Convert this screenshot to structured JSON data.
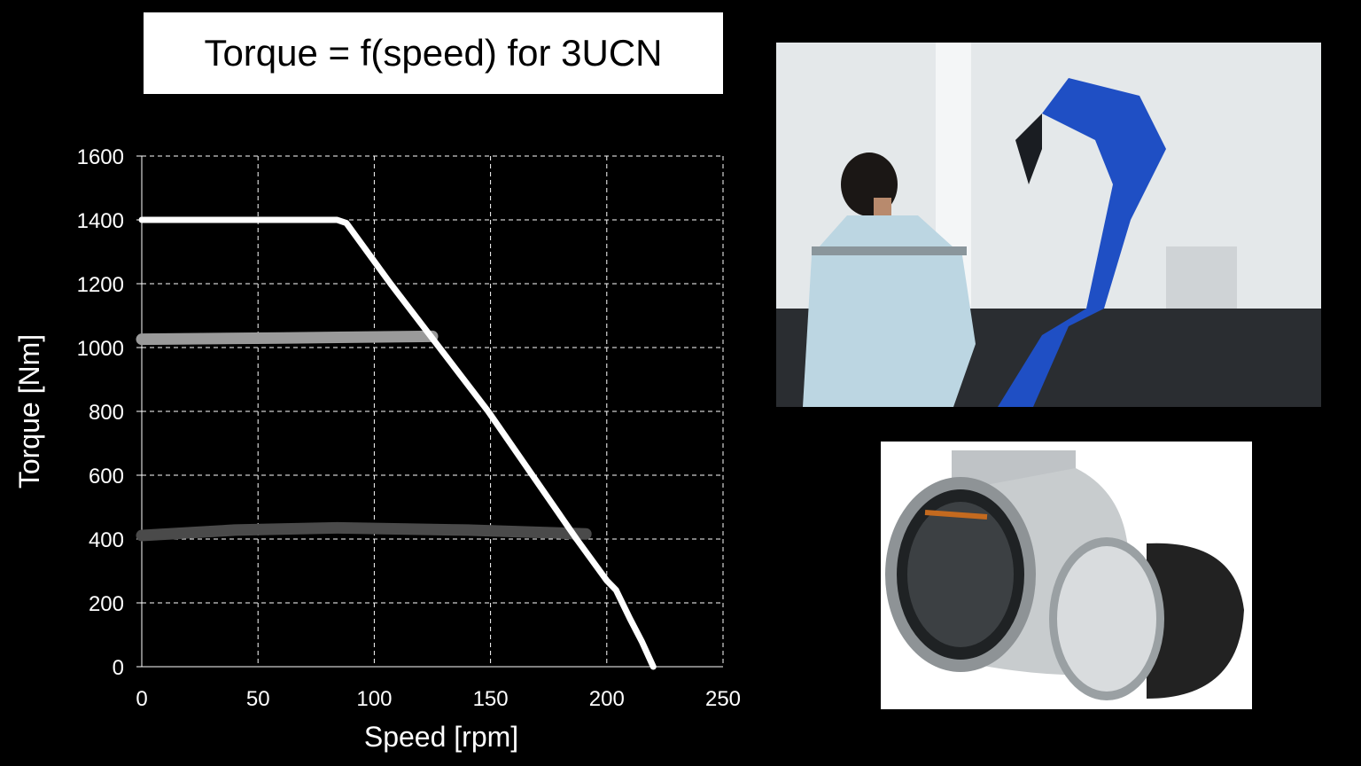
{
  "title": "Torque = f(speed) for 3UCN",
  "images": {
    "robot_photo": "industrial robot arm with technician",
    "motor_photo": "frameless torque motor stator and rotor"
  },
  "colors": {
    "background": "#000000",
    "curve_max": "#ffffff",
    "curve_light": "#9a9a9a",
    "curve_dark": "#4a4a4a",
    "grid": "#ffffff"
  },
  "chart_data": {
    "type": "line",
    "title": "Torque = f(speed) for 3UCN",
    "xlabel": "Speed [rpm]",
    "ylabel": "Torque [Nm]",
    "xlim": [
      0,
      250
    ],
    "ylim": [
      0,
      1600
    ],
    "xticks": [
      "0",
      "50",
      "100",
      "150",
      "200",
      "250"
    ],
    "yticks": [
      "0",
      "200",
      "400",
      "600",
      "800",
      "1000",
      "1200",
      "1400",
      "1600"
    ],
    "grid": true,
    "grid_style": "dashed",
    "series": [
      {
        "color": "#ffffff",
        "x": [
          0,
          84,
          88,
          107,
          149,
          187,
          200,
          204,
          210,
          215,
          220
        ],
        "y": [
          1400,
          1400,
          1390,
          1200,
          800,
          400,
          270,
          240,
          150,
          80,
          0
        ]
      },
      {
        "color": "#9a9a9a",
        "x": [
          0,
          60,
          125
        ],
        "y": [
          1026,
          1030,
          1035
        ]
      },
      {
        "color": "#4a4a4a",
        "x": [
          0,
          40,
          84,
          140,
          191
        ],
        "y": [
          411,
          428,
          435,
          428,
          416
        ]
      }
    ]
  }
}
